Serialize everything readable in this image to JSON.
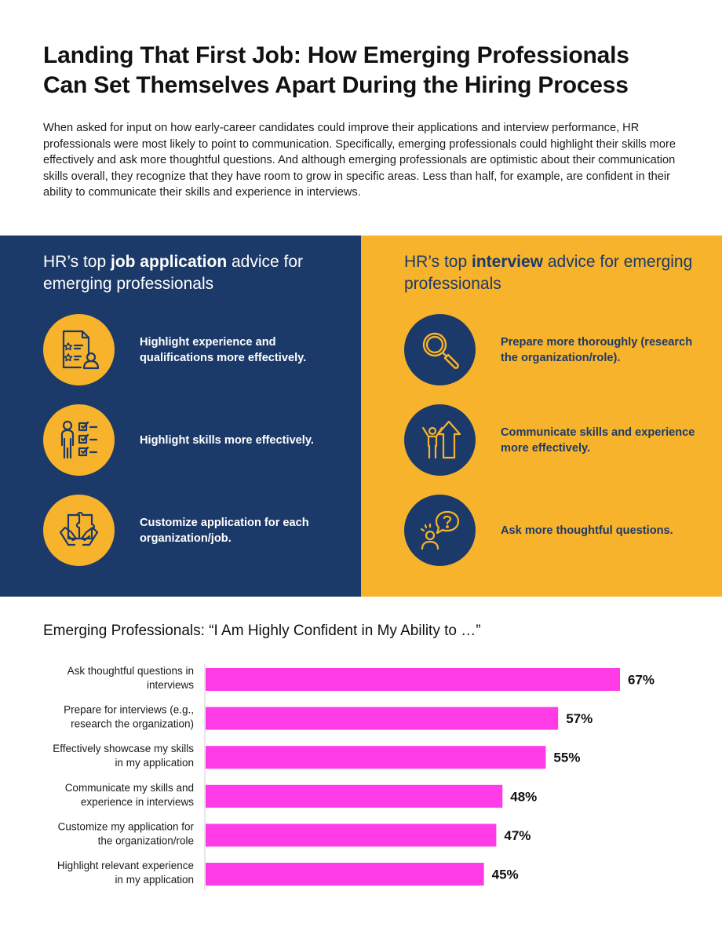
{
  "title_line1": "Landing That First Job: How Emerging Professionals",
  "title_line2": "Can Set Themselves Apart During the Hiring Process",
  "intro": "When asked for input on how early-career candidates could improve their applications and interview performance, HR professionals were most likely to point to communication. Specifically, emerging professionals could highlight their skills more effectively and ask more thoughtful questions. And although emerging professionals are optimistic about their communication skills overall, they recognize that they have room to grow in specific areas. Less than half, for example, are confident in their ability to communicate their skills and experience in interviews.",
  "left_panel": {
    "heading_pre": "HR’s top ",
    "heading_bold": "job application",
    "heading_post": " advice for emerging professionals",
    "tips": [
      {
        "icon": "resume-icon",
        "text": "Highlight experience and qualifications more effectively."
      },
      {
        "icon": "skills-checklist-icon",
        "text": "Highlight skills more effectively."
      },
      {
        "icon": "puzzle-hands-icon",
        "text": "Customize application for each organization/job."
      }
    ]
  },
  "right_panel": {
    "heading_pre": "HR’s top ",
    "heading_bold": "interview",
    "heading_post": " advice for emerging professionals",
    "tips": [
      {
        "icon": "magnifier-icon",
        "text": "Prepare more thoroughly (research the organization/role)."
      },
      {
        "icon": "growth-person-icon",
        "text": "Communicate skills and experience more effectively."
      },
      {
        "icon": "question-bubble-icon",
        "text": "Ask more thoughtful questions."
      }
    ]
  },
  "colors": {
    "navy": "#1c3a69",
    "gold": "#f7b32b",
    "bar": "#ff3be8"
  },
  "chart_data": {
    "type": "bar",
    "orientation": "horizontal",
    "title": "Emerging Professionals: “I Am Highly Confident in My Ability to …”",
    "categories": [
      [
        "Ask thoughtful questions in",
        "interviews"
      ],
      [
        "Prepare for interviews (e.g.,",
        "research the organization)"
      ],
      [
        "Effectively showcase my skills",
        "in my application"
      ],
      [
        "Communicate my skills and",
        "experience in interviews"
      ],
      [
        "Customize my application for",
        "the organization/role"
      ],
      [
        "Highlight relevant experience",
        "in my application"
      ]
    ],
    "values": [
      67,
      57,
      55,
      48,
      47,
      45
    ],
    "value_labels": [
      "67%",
      "57%",
      "55%",
      "48%",
      "47%",
      "45%"
    ],
    "xlim": [
      0,
      100
    ],
    "grid": false
  }
}
